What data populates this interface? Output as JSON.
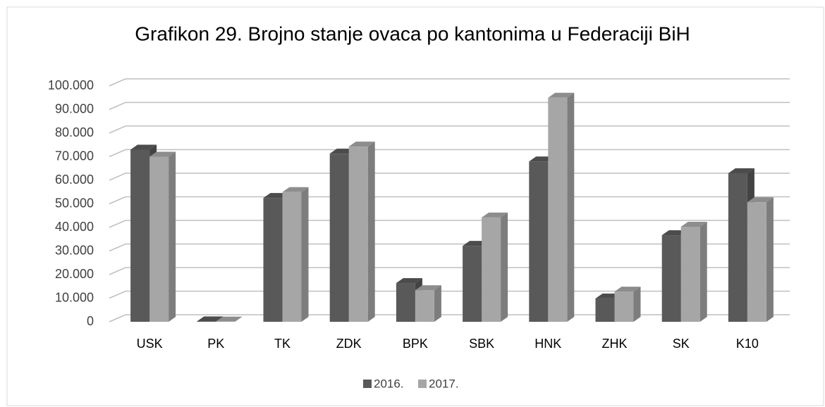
{
  "chart_data": {
    "type": "bar3d",
    "title": "Grafikon 29. Brojno stanje ovaca po kantonima u Federaciji BiH",
    "categories": [
      "USK",
      "PK",
      "TK",
      "ZDK",
      "BPK",
      "SBK",
      "HNK",
      "ZHK",
      "SK",
      "K10"
    ],
    "series": [
      {
        "name": "2016.",
        "color": "#595959",
        "values": [
          73000,
          200,
          52500,
          71300,
          16400,
          32200,
          68000,
          9900,
          36700,
          63000
        ]
      },
      {
        "name": "2017.",
        "color": "#a6a6a6",
        "values": [
          70000,
          100,
          55000,
          74300,
          13400,
          44200,
          95000,
          12800,
          40300,
          50700
        ]
      }
    ],
    "ylim": [
      0,
      100000
    ],
    "yticks": [
      0,
      {
        "value": 10000,
        "label": "10.000"
      },
      {
        "value": 20000,
        "label": "20.000"
      },
      {
        "value": 30000,
        "label": "30.000"
      },
      {
        "value": 40000,
        "label": "40.000"
      },
      {
        "value": 50000,
        "label": "50.000"
      },
      {
        "value": 60000,
        "label": "60.000"
      },
      {
        "value": 70000,
        "label": "70.000"
      },
      {
        "value": 80000,
        "label": "80.000"
      },
      {
        "value": 90000,
        "label": "90.000"
      },
      {
        "value": 100000,
        "label": "100.000"
      }
    ],
    "grid": true,
    "legend": "bottom"
  }
}
